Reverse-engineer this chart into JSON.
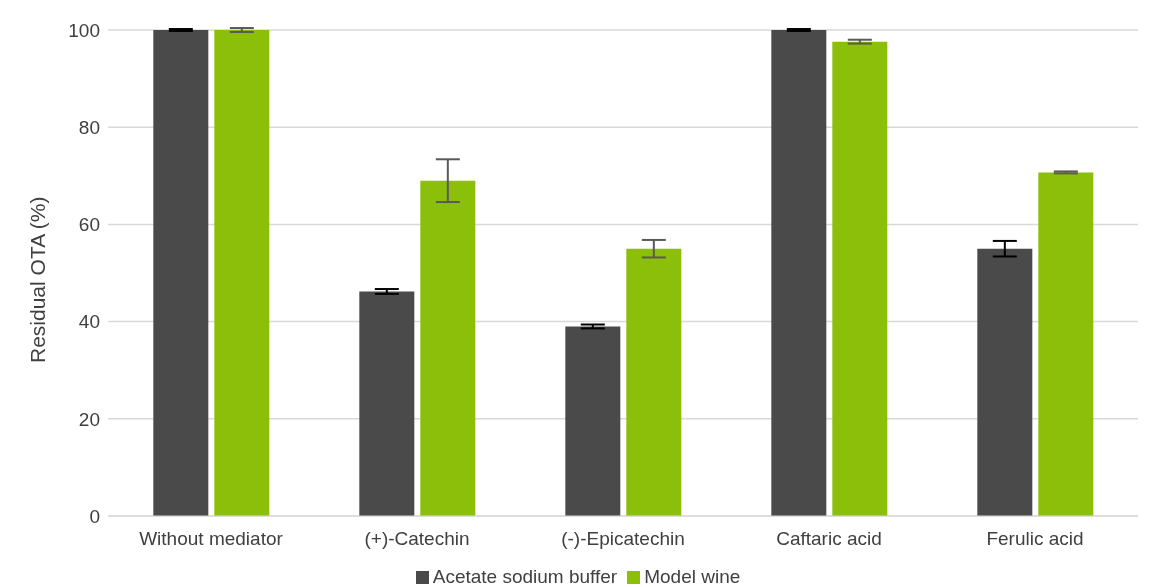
{
  "chart_data": {
    "type": "bar",
    "ylabel": "Residual OTA (%)",
    "categories": [
      "Without mediator",
      "(+)-Catechin",
      "(-)-Epicatechin",
      "Caftaric acid",
      "Ferulic acid"
    ],
    "series": [
      {
        "name": "Acetate sodium buffer",
        "color": "#4a4a4a",
        "values": [
          100,
          46.2,
          39,
          100,
          55
        ],
        "errors": [
          0.2,
          0.5,
          0.4,
          0.2,
          1.6
        ]
      },
      {
        "name": "Model wine",
        "color": "#8cbf0a",
        "values": [
          100,
          69,
          55,
          97.6,
          70.7
        ],
        "errors": [
          0.4,
          4.4,
          1.8,
          0.4,
          0.2
        ]
      }
    ],
    "ylim": [
      0,
      100
    ],
    "yticks": [
      0,
      20,
      40,
      60,
      80,
      100
    ],
    "grid": "y",
    "legend": "bottom"
  }
}
